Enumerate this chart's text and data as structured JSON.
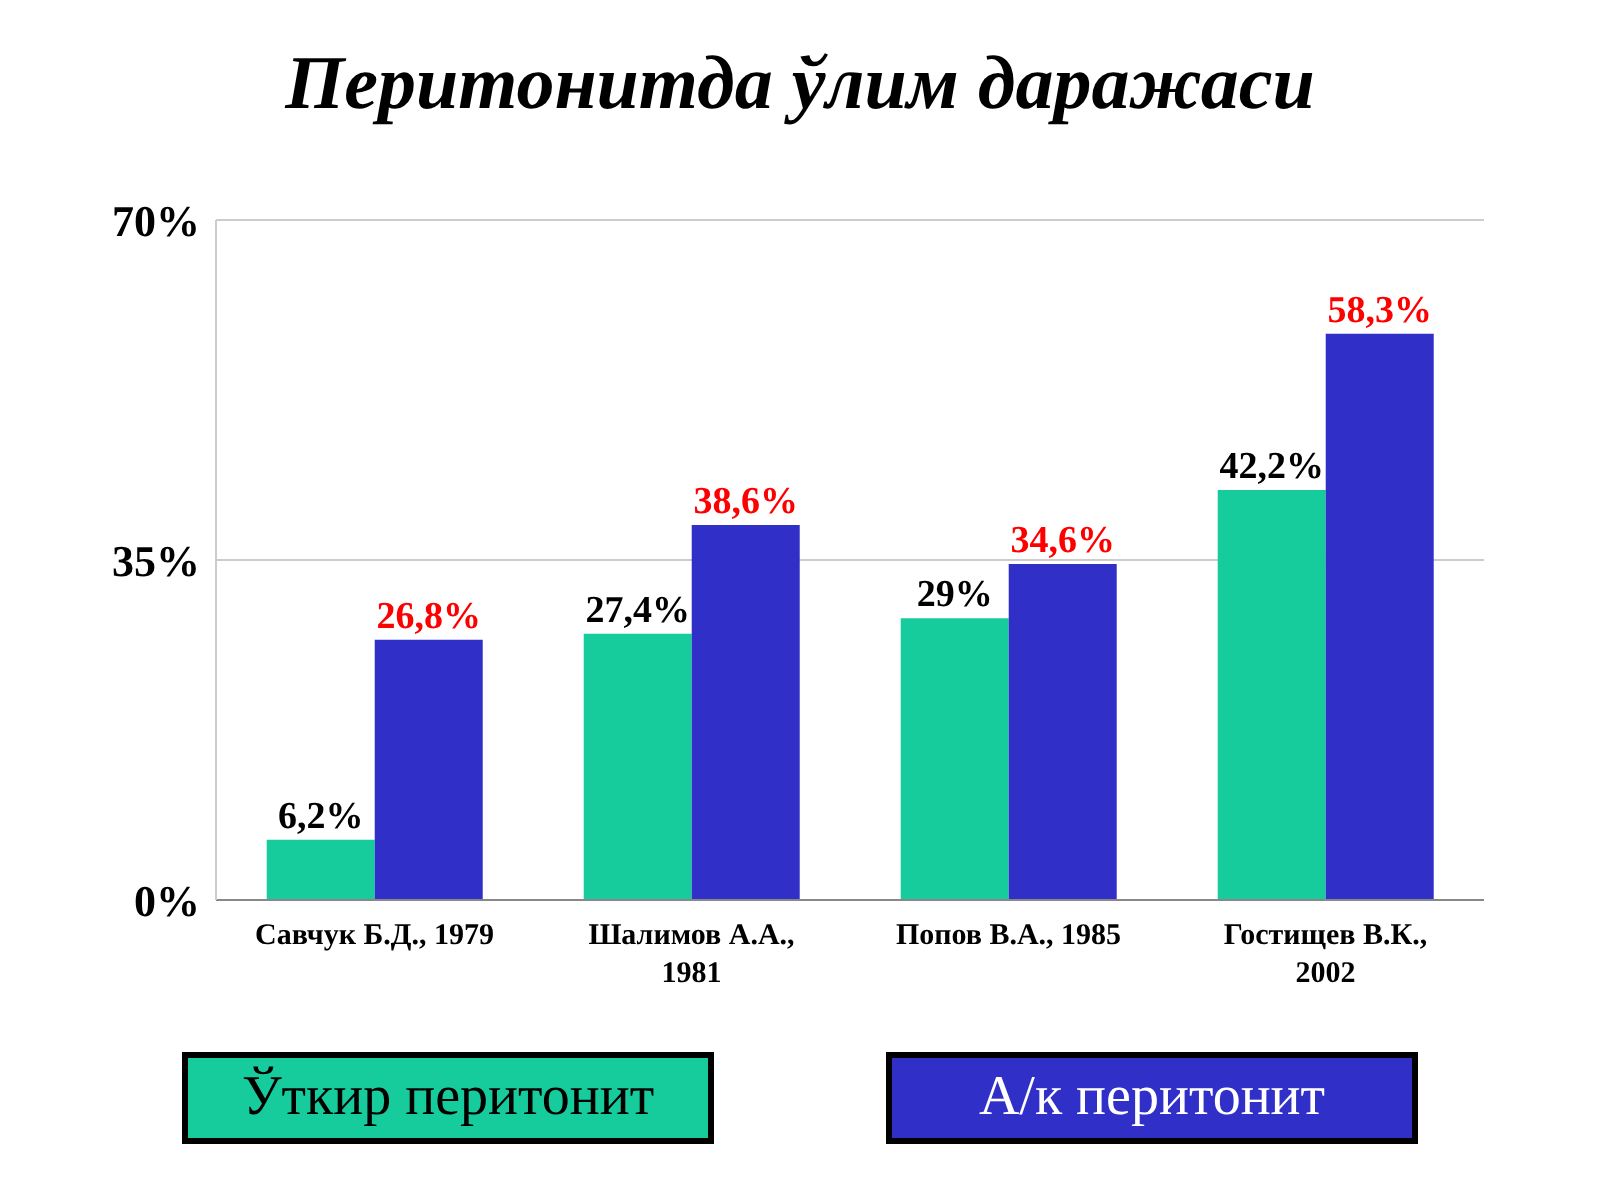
{
  "chart_data": {
    "type": "bar",
    "title": "Перитонитда ўлим даражаси",
    "categories": [
      "Савчук Б.Д., 1979",
      "Шалимов А.А., 1981",
      "Попов В.А., 1985",
      "Гостищев В.К., 2002"
    ],
    "series": [
      {
        "name": "Ўткир перитонит",
        "color": "#16cc9c",
        "values": [
          6.2,
          27.4,
          29,
          42.2
        ],
        "value_labels": [
          "6,2%",
          "27,4%",
          "29%",
          "42,2%"
        ]
      },
      {
        "name": "А/к перитонит",
        "color": "#3030c8",
        "values": [
          26.8,
          38.6,
          34.6,
          58.3
        ],
        "value_labels": [
          "26,8%",
          "38,6%",
          "34,6%",
          "58,3%"
        ]
      }
    ],
    "ylim": [
      0,
      70
    ],
    "yticks": [
      {
        "value": 0,
        "label": "0%"
      },
      {
        "value": 35,
        "label": "35%"
      },
      {
        "value": 70,
        "label": "70%"
      }
    ],
    "grid": "y",
    "legend": "bottom"
  }
}
